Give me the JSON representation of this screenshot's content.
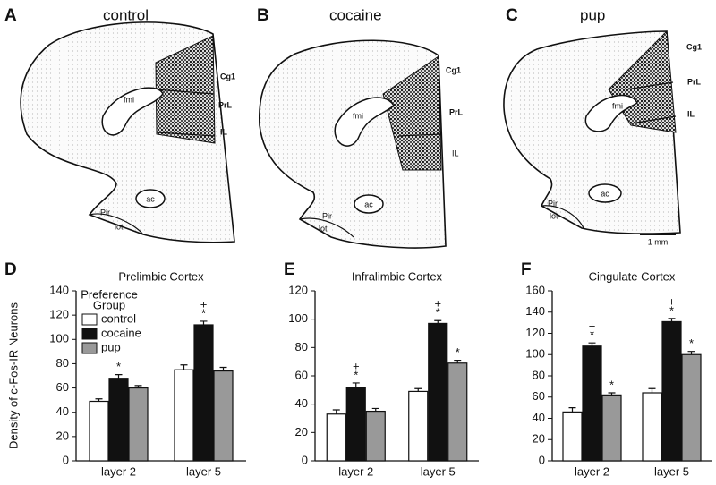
{
  "sections": [
    {
      "letter": "A",
      "title": "control",
      "labels": [
        "Cg1",
        "PrL",
        "IL",
        "fmi",
        "ac",
        "Pir",
        "lot"
      ]
    },
    {
      "letter": "B",
      "title": "cocaine",
      "labels": [
        "Cg1",
        "PrL",
        "IL",
        "fmi",
        "ac",
        "Pir",
        "lot"
      ]
    },
    {
      "letter": "C",
      "title": "pup",
      "labels": [
        "Cg1",
        "PrL",
        "IL",
        "fmi",
        "ac",
        "Pir",
        "lot"
      ]
    }
  ],
  "scale_bar": "1 mm",
  "chart_data": [
    {
      "type": "bar",
      "panel_label": "D",
      "title": "Prelimbic Cortex",
      "y_label": "Density of c-Fos-IR Neurons",
      "legend_title": [
        "Preference",
        "Group"
      ],
      "categories": [
        "layer 2",
        "layer 5"
      ],
      "series": [
        {
          "name": "control",
          "color": "#ffffff",
          "values": [
            49,
            75
          ],
          "errors": [
            2,
            4
          ],
          "annotations": [
            null,
            null
          ]
        },
        {
          "name": "cocaine",
          "color": "#111111",
          "values": [
            68,
            112
          ],
          "errors": [
            3,
            3
          ],
          "annotations": [
            [
              "*"
            ],
            [
              "+",
              "*"
            ]
          ]
        },
        {
          "name": "pup",
          "color": "#999999",
          "values": [
            60,
            74
          ],
          "errors": [
            2,
            3
          ],
          "annotations": [
            null,
            null
          ]
        }
      ],
      "ylim": [
        0,
        140
      ],
      "yticks": [
        0,
        20,
        40,
        60,
        80,
        100,
        120,
        140
      ]
    },
    {
      "type": "bar",
      "panel_label": "E",
      "title": "Infralimbic Cortex",
      "categories": [
        "layer 2",
        "layer 5"
      ],
      "series": [
        {
          "name": "control",
          "color": "#ffffff",
          "values": [
            33,
            49
          ],
          "errors": [
            3,
            2
          ],
          "annotations": [
            null,
            null
          ]
        },
        {
          "name": "cocaine",
          "color": "#111111",
          "values": [
            52,
            97
          ],
          "errors": [
            3,
            2
          ],
          "annotations": [
            [
              "+",
              "*"
            ],
            [
              "+",
              "*"
            ]
          ]
        },
        {
          "name": "pup",
          "color": "#999999",
          "values": [
            35,
            69
          ],
          "errors": [
            2,
            2
          ],
          "annotations": [
            null,
            [
              "*"
            ]
          ]
        }
      ],
      "ylim": [
        0,
        120
      ],
      "yticks": [
        0,
        20,
        40,
        60,
        80,
        100,
        120
      ]
    },
    {
      "type": "bar",
      "panel_label": "F",
      "title": "Cingulate Cortex",
      "categories": [
        "layer 2",
        "layer 5"
      ],
      "series": [
        {
          "name": "control",
          "color": "#ffffff",
          "values": [
            46,
            64
          ],
          "errors": [
            4,
            4
          ],
          "annotations": [
            null,
            null
          ]
        },
        {
          "name": "cocaine",
          "color": "#111111",
          "values": [
            108,
            131
          ],
          "errors": [
            3,
            3
          ],
          "annotations": [
            [
              "+",
              "*"
            ],
            [
              "+",
              "*"
            ]
          ]
        },
        {
          "name": "pup",
          "color": "#999999",
          "values": [
            62,
            100
          ],
          "errors": [
            2,
            3
          ],
          "annotations": [
            [
              "*"
            ],
            [
              "*"
            ]
          ]
        }
      ],
      "ylim": [
        0,
        160
      ],
      "yticks": [
        0,
        20,
        40,
        60,
        80,
        100,
        120,
        140,
        160
      ]
    }
  ]
}
